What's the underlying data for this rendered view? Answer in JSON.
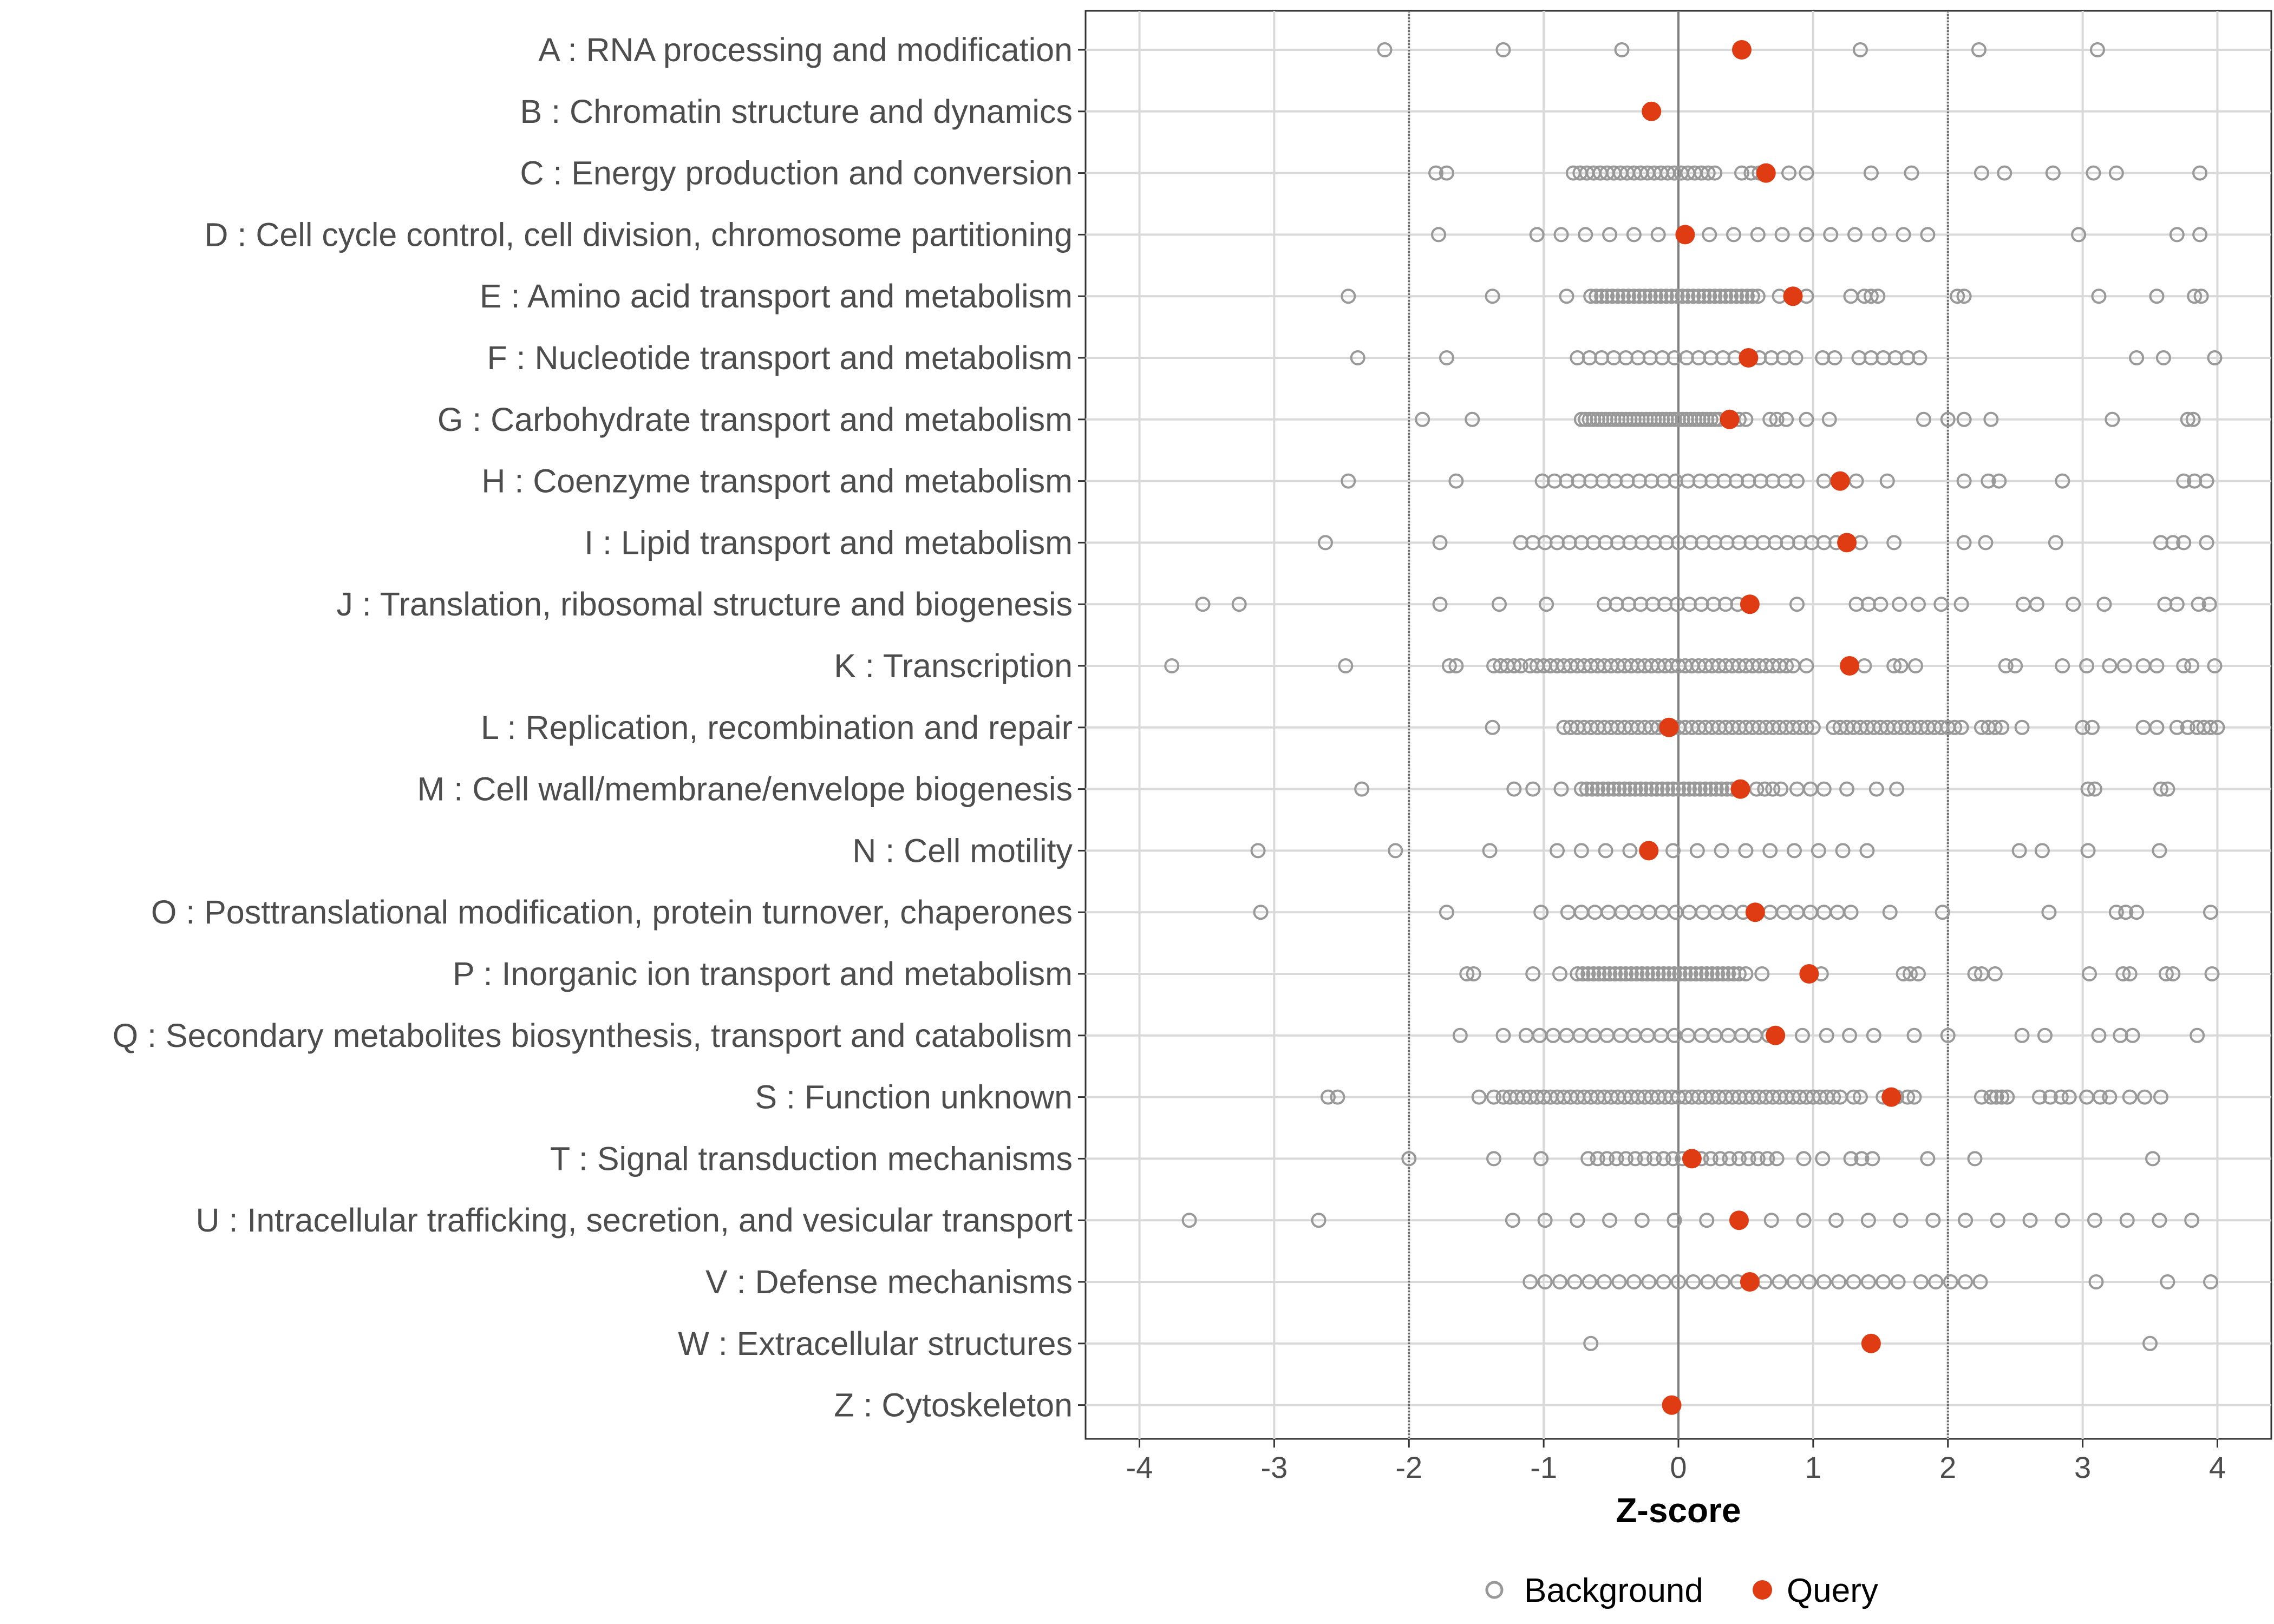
{
  "chart_data": {
    "type": "scatter",
    "title": "",
    "xlabel": "Z-score",
    "ylabel": "",
    "xlim": [
      -4.4,
      4.4
    ],
    "x_ticks": [
      -4,
      -3,
      -2,
      -1,
      0,
      1,
      2,
      3,
      4
    ],
    "threshold_lines": [
      -2,
      0,
      2
    ],
    "grid": true,
    "legend": {
      "position": "bottom",
      "entries": [
        {
          "name": "Background",
          "marker": "open-circle",
          "color": "#999999"
        },
        {
          "name": "Query",
          "marker": "filled-circle",
          "color": "#e03c14"
        }
      ]
    },
    "categories": [
      {
        "label": "A : RNA processing and modification",
        "query": 0.47,
        "background": [
          -2.18,
          -1.3,
          -0.42,
          1.35,
          2.23,
          3.11
        ]
      },
      {
        "label": "B : Chromatin structure and dynamics",
        "query": -0.2,
        "background": []
      },
      {
        "label": "C : Energy production and conversion",
        "query": 0.65,
        "background": [
          -1.8,
          -1.72,
          -0.78,
          -0.73,
          -0.68,
          -0.63,
          -0.58,
          -0.53,
          -0.48,
          -0.43,
          -0.38,
          -0.33,
          -0.28,
          -0.23,
          -0.18,
          -0.13,
          -0.08,
          -0.03,
          0.02,
          0.07,
          0.12,
          0.17,
          0.22,
          0.27,
          0.47,
          0.54,
          0.6,
          0.82,
          0.95,
          1.43,
          1.73,
          2.25,
          2.42,
          2.78,
          3.08,
          3.25,
          3.87
        ]
      },
      {
        "label": "D : Cell cycle control, cell division, chromosome partitioning",
        "query": 0.05,
        "background": [
          -1.78,
          -1.05,
          -0.87,
          -0.69,
          -0.51,
          -0.33,
          -0.15,
          0.23,
          0.41,
          0.59,
          0.77,
          0.95,
          1.13,
          1.31,
          1.49,
          1.67,
          1.85,
          2.97,
          3.7,
          3.87
        ]
      },
      {
        "label": "E : Amino acid transport and metabolism",
        "query": 0.85,
        "background": [
          -2.45,
          -1.38,
          -0.83,
          -0.65,
          -0.61,
          -0.57,
          -0.53,
          -0.49,
          -0.45,
          -0.41,
          -0.37,
          -0.33,
          -0.29,
          -0.25,
          -0.21,
          -0.17,
          -0.13,
          -0.09,
          -0.05,
          -0.01,
          0.03,
          0.07,
          0.11,
          0.15,
          0.19,
          0.23,
          0.27,
          0.31,
          0.35,
          0.39,
          0.43,
          0.47,
          0.51,
          0.55,
          0.59,
          0.75,
          0.95,
          1.28,
          1.38,
          1.43,
          1.48,
          2.07,
          2.12,
          3.12,
          3.55,
          3.83,
          3.88
        ]
      },
      {
        "label": "F : Nucleotide transport and metabolism",
        "query": 0.52,
        "background": [
          -2.38,
          -1.72,
          -0.75,
          -0.66,
          -0.57,
          -0.48,
          -0.39,
          -0.3,
          -0.21,
          -0.12,
          -0.03,
          0.06,
          0.15,
          0.24,
          0.33,
          0.42,
          0.6,
          0.69,
          0.78,
          0.87,
          1.07,
          1.16,
          1.34,
          1.43,
          1.52,
          1.61,
          1.7,
          1.79,
          3.4,
          3.6,
          3.98
        ]
      },
      {
        "label": "G : Carbohydrate transport and metabolism",
        "query": 0.38,
        "background": [
          -1.9,
          -1.53,
          -0.72,
          -0.69,
          -0.66,
          -0.63,
          -0.6,
          -0.57,
          -0.54,
          -0.51,
          -0.48,
          -0.45,
          -0.42,
          -0.39,
          -0.36,
          -0.33,
          -0.3,
          -0.27,
          -0.24,
          -0.21,
          -0.18,
          -0.15,
          -0.12,
          -0.09,
          -0.06,
          -0.03,
          0.0,
          0.03,
          0.06,
          0.09,
          0.12,
          0.15,
          0.18,
          0.21,
          0.24,
          0.27,
          0.3,
          0.45,
          0.5,
          0.68,
          0.73,
          0.8,
          0.95,
          1.12,
          1.82,
          2.0,
          2.12,
          2.32,
          3.22,
          3.78,
          3.82
        ]
      },
      {
        "label": "H : Coenzyme transport and metabolism",
        "query": 1.2,
        "background": [
          -2.45,
          -1.65,
          -1.01,
          -0.92,
          -0.83,
          -0.74,
          -0.65,
          -0.56,
          -0.47,
          -0.38,
          -0.29,
          -0.2,
          -0.11,
          -0.02,
          0.07,
          0.16,
          0.25,
          0.34,
          0.43,
          0.52,
          0.61,
          0.7,
          0.79,
          0.88,
          1.08,
          1.32,
          1.55,
          2.12,
          2.3,
          2.38,
          2.85,
          3.75,
          3.83,
          3.92
        ]
      },
      {
        "label": "I : Lipid transport and metabolism",
        "query": 1.25,
        "background": [
          -2.62,
          -1.77,
          -1.17,
          -1.08,
          -0.99,
          -0.9,
          -0.81,
          -0.72,
          -0.63,
          -0.54,
          -0.45,
          -0.36,
          -0.27,
          -0.18,
          -0.09,
          0.0,
          0.09,
          0.18,
          0.27,
          0.36,
          0.45,
          0.54,
          0.63,
          0.72,
          0.81,
          0.9,
          0.99,
          1.08,
          1.17,
          1.35,
          1.6,
          2.12,
          2.28,
          2.8,
          3.58,
          3.67,
          3.75,
          3.92
        ]
      },
      {
        "label": "J : Translation, ribosomal structure and biogenesis",
        "query": 0.53,
        "background": [
          -3.53,
          -3.26,
          -1.77,
          -1.33,
          -0.98,
          -0.55,
          -0.46,
          -0.37,
          -0.28,
          -0.19,
          -0.1,
          -0.01,
          0.08,
          0.17,
          0.26,
          0.35,
          0.44,
          0.88,
          1.32,
          1.41,
          1.5,
          1.64,
          1.78,
          1.95,
          2.1,
          2.56,
          2.66,
          2.93,
          3.16,
          3.61,
          3.7,
          3.86,
          3.94
        ]
      },
      {
        "label": "K : Transcription",
        "query": 1.27,
        "background": [
          -3.76,
          -2.47,
          -1.7,
          -1.65,
          -1.37,
          -1.32,
          -1.27,
          -1.22,
          -1.17,
          -1.1,
          -1.05,
          -1.0,
          -0.95,
          -0.9,
          -0.85,
          -0.8,
          -0.75,
          -0.7,
          -0.65,
          -0.6,
          -0.55,
          -0.5,
          -0.45,
          -0.4,
          -0.35,
          -0.3,
          -0.25,
          -0.2,
          -0.15,
          -0.1,
          -0.05,
          0.0,
          0.05,
          0.1,
          0.15,
          0.2,
          0.25,
          0.3,
          0.35,
          0.4,
          0.45,
          0.5,
          0.55,
          0.6,
          0.65,
          0.7,
          0.75,
          0.8,
          0.85,
          0.95,
          1.38,
          1.6,
          1.65,
          1.76,
          2.43,
          2.5,
          2.85,
          3.03,
          3.2,
          3.31,
          3.45,
          3.55,
          3.75,
          3.81,
          3.98
        ]
      },
      {
        "label": "L : Replication, recombination and repair",
        "query": -0.07,
        "background": [
          -1.38,
          -0.85,
          -0.8,
          -0.75,
          -0.7,
          -0.65,
          -0.6,
          -0.55,
          -0.5,
          -0.45,
          -0.4,
          -0.35,
          -0.3,
          -0.25,
          -0.2,
          -0.15,
          -0.1,
          -0.05,
          0.0,
          0.05,
          0.1,
          0.15,
          0.2,
          0.25,
          0.3,
          0.35,
          0.4,
          0.45,
          0.5,
          0.55,
          0.6,
          0.65,
          0.7,
          0.75,
          0.8,
          0.85,
          0.9,
          0.95,
          1.0,
          1.15,
          1.2,
          1.25,
          1.3,
          1.35,
          1.4,
          1.45,
          1.5,
          1.55,
          1.6,
          1.65,
          1.7,
          1.75,
          1.8,
          1.85,
          1.9,
          1.95,
          2.0,
          2.05,
          2.1,
          2.25,
          2.3,
          2.35,
          2.4,
          2.55,
          3.0,
          3.07,
          3.45,
          3.55,
          3.7,
          3.78,
          3.85,
          3.9,
          3.95,
          4.0
        ]
      },
      {
        "label": "M : Cell wall/membrane/envelope biogenesis",
        "query": 0.46,
        "background": [
          -2.35,
          -1.22,
          -1.08,
          -0.87,
          -0.72,
          -0.68,
          -0.64,
          -0.6,
          -0.56,
          -0.52,
          -0.48,
          -0.44,
          -0.4,
          -0.36,
          -0.32,
          -0.28,
          -0.24,
          -0.2,
          -0.16,
          -0.12,
          -0.08,
          -0.04,
          0.0,
          0.04,
          0.08,
          0.12,
          0.16,
          0.2,
          0.24,
          0.28,
          0.32,
          0.36,
          0.4,
          0.58,
          0.64,
          0.7,
          0.76,
          0.88,
          0.98,
          1.08,
          1.25,
          1.47,
          1.62,
          3.04,
          3.09,
          3.58,
          3.63
        ]
      },
      {
        "label": "N : Cell motility",
        "query": -0.22,
        "background": [
          -3.12,
          -2.1,
          -1.4,
          -0.9,
          -0.72,
          -0.54,
          -0.36,
          -0.04,
          0.14,
          0.32,
          0.5,
          0.68,
          0.86,
          1.04,
          1.22,
          1.4,
          2.53,
          2.7,
          3.04,
          3.57
        ]
      },
      {
        "label": "O : Posttranslational modification, protein turnover, chaperones",
        "query": 0.57,
        "background": [
          -3.1,
          -1.72,
          -1.02,
          -0.82,
          -0.72,
          -0.62,
          -0.52,
          -0.42,
          -0.32,
          -0.22,
          -0.12,
          -0.02,
          0.08,
          0.18,
          0.28,
          0.38,
          0.48,
          0.68,
          0.78,
          0.88,
          0.98,
          1.08,
          1.18,
          1.28,
          1.57,
          1.96,
          2.75,
          3.25,
          3.32,
          3.4,
          3.95
        ]
      },
      {
        "label": "P : Inorganic ion transport and metabolism",
        "query": 0.97,
        "background": [
          -1.57,
          -1.52,
          -1.08,
          -0.88,
          -0.75,
          -0.71,
          -0.67,
          -0.63,
          -0.59,
          -0.55,
          -0.51,
          -0.47,
          -0.43,
          -0.39,
          -0.35,
          -0.31,
          -0.27,
          -0.23,
          -0.19,
          -0.15,
          -0.11,
          -0.07,
          -0.03,
          0.01,
          0.05,
          0.09,
          0.13,
          0.17,
          0.21,
          0.25,
          0.29,
          0.33,
          0.37,
          0.41,
          0.45,
          0.5,
          0.62,
          1.06,
          1.67,
          1.72,
          1.78,
          2.2,
          2.25,
          2.35,
          3.05,
          3.3,
          3.35,
          3.62,
          3.67,
          3.96
        ]
      },
      {
        "label": "Q : Secondary metabolites biosynthesis, transport and catabolism",
        "query": 0.72,
        "background": [
          -1.62,
          -1.3,
          -1.13,
          -1.03,
          -0.93,
          -0.83,
          -0.73,
          -0.63,
          -0.53,
          -0.43,
          -0.33,
          -0.23,
          -0.13,
          -0.03,
          0.07,
          0.17,
          0.27,
          0.37,
          0.47,
          0.57,
          0.67,
          0.92,
          1.1,
          1.27,
          1.45,
          1.75,
          2.0,
          2.55,
          2.72,
          3.12,
          3.28,
          3.37,
          3.85
        ]
      },
      {
        "label": "S : Function unknown",
        "query": 1.58,
        "background": [
          -2.6,
          -2.53,
          -1.48,
          -1.37,
          -1.3,
          -1.25,
          -1.2,
          -1.15,
          -1.1,
          -1.05,
          -1.0,
          -0.95,
          -0.9,
          -0.85,
          -0.8,
          -0.75,
          -0.7,
          -0.65,
          -0.6,
          -0.55,
          -0.5,
          -0.45,
          -0.4,
          -0.35,
          -0.3,
          -0.25,
          -0.2,
          -0.15,
          -0.1,
          -0.05,
          0.0,
          0.05,
          0.1,
          0.15,
          0.2,
          0.25,
          0.3,
          0.35,
          0.4,
          0.45,
          0.5,
          0.55,
          0.6,
          0.65,
          0.7,
          0.75,
          0.8,
          0.85,
          0.9,
          0.95,
          1.0,
          1.05,
          1.1,
          1.15,
          1.2,
          1.3,
          1.35,
          1.52,
          1.62,
          1.7,
          1.75,
          2.25,
          2.32,
          2.36,
          2.4,
          2.44,
          2.68,
          2.76,
          2.84,
          2.9,
          3.03,
          3.13,
          3.2,
          3.35,
          3.46,
          3.58
        ]
      },
      {
        "label": "T : Signal transduction mechanisms",
        "query": 0.1,
        "background": [
          -2.0,
          -1.37,
          -1.02,
          -0.67,
          -0.6,
          -0.53,
          -0.46,
          -0.39,
          -0.32,
          -0.25,
          -0.18,
          -0.11,
          -0.04,
          0.03,
          0.17,
          0.24,
          0.31,
          0.38,
          0.45,
          0.52,
          0.59,
          0.66,
          0.73,
          0.93,
          1.07,
          1.28,
          1.36,
          1.44,
          1.85,
          2.2,
          3.52
        ]
      },
      {
        "label": "U : Intracellular trafficking, secretion, and vesicular transport",
        "query": 0.45,
        "background": [
          -3.63,
          -2.67,
          -1.23,
          -0.99,
          -0.75,
          -0.51,
          -0.27,
          -0.03,
          0.21,
          0.69,
          0.93,
          1.17,
          1.41,
          1.65,
          1.89,
          2.13,
          2.37,
          2.61,
          2.85,
          3.09,
          3.33,
          3.57,
          3.81
        ]
      },
      {
        "label": "V : Defense mechanisms",
        "query": 0.53,
        "background": [
          -1.1,
          -0.99,
          -0.88,
          -0.77,
          -0.66,
          -0.55,
          -0.44,
          -0.33,
          -0.22,
          -0.11,
          0.0,
          0.11,
          0.22,
          0.33,
          0.44,
          0.64,
          0.75,
          0.86,
          0.97,
          1.08,
          1.19,
          1.3,
          1.41,
          1.52,
          1.63,
          1.8,
          1.91,
          2.02,
          2.13,
          2.24,
          3.1,
          3.63,
          3.95
        ]
      },
      {
        "label": "W : Extracellular structures",
        "query": 1.43,
        "background": [
          -0.65,
          3.5
        ]
      },
      {
        "label": "Z : Cytoskeleton",
        "query": -0.05,
        "background": []
      }
    ]
  },
  "colors": {
    "query": "#e03c14",
    "background": "#999999",
    "grid": "#d9d9d9",
    "axis": "#333333",
    "zero_line": "#7f7f7f",
    "threshold_line": "#6e6e6e"
  }
}
